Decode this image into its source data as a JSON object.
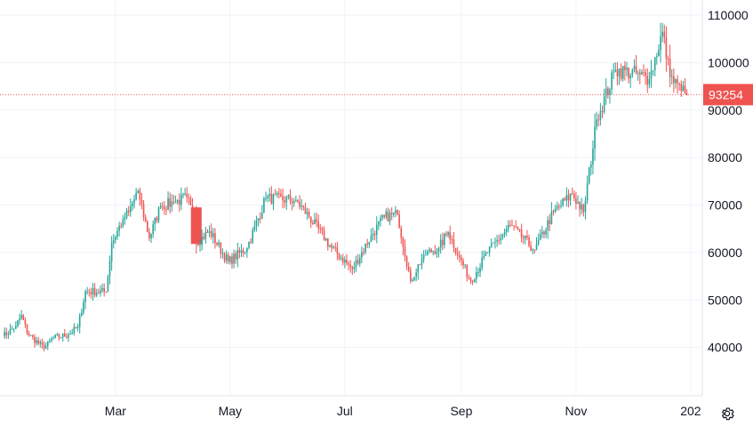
{
  "chart_data": {
    "type": "candlestick",
    "y_axis": {
      "ticks": [
        40000,
        50000,
        60000,
        70000,
        80000,
        90000,
        100000,
        110000
      ],
      "tick_labels": [
        "40000",
        "50000",
        "60000",
        "70000",
        "80000",
        "90000",
        "100000",
        "110000"
      ],
      "range": [
        31500,
        111500
      ],
      "side": "right"
    },
    "x_axis": {
      "range": [
        "2024-01-01",
        "2025-01-02"
      ],
      "ticks": [
        {
          "date": "2024-03-01",
          "label": "Mar"
        },
        {
          "date": "2024-05-01",
          "label": "May"
        },
        {
          "date": "2024-07-01",
          "label": "Jul"
        },
        {
          "date": "2024-09-01",
          "label": "Sep"
        },
        {
          "date": "2024-11-01",
          "label": "Nov"
        },
        {
          "date": "2025-01-01",
          "label": "202"
        }
      ]
    },
    "grid": true,
    "last_price": 93254,
    "last_price_label": "93254",
    "up_color": "#26a69a",
    "down_color": "#ef5350",
    "grid_color": "#f0f3fa",
    "anchors": [
      [
        "2024-01-01",
        42300
      ],
      [
        "2024-01-08",
        44500
      ],
      [
        "2024-01-11",
        46800
      ],
      [
        "2024-01-14",
        43000
      ],
      [
        "2024-01-23",
        39800
      ],
      [
        "2024-01-28",
        42000
      ],
      [
        "2024-02-05",
        42700
      ],
      [
        "2024-02-10",
        44300
      ],
      [
        "2024-02-14",
        51800
      ],
      [
        "2024-02-25",
        51700
      ],
      [
        "2024-02-28",
        62000
      ],
      [
        "2024-03-05",
        67000
      ],
      [
        "2024-03-08",
        68500
      ],
      [
        "2024-03-13",
        73000
      ],
      [
        "2024-03-19",
        63000
      ],
      [
        "2024-03-25",
        69800
      ],
      [
        "2024-04-01",
        70500
      ],
      [
        "2024-04-08",
        71600
      ],
      [
        "2024-04-12",
        67000
      ],
      [
        "2024-04-13",
        62000
      ],
      [
        "2024-04-20",
        64500
      ],
      [
        "2024-04-30",
        58000
      ],
      [
        "2024-05-10",
        61000
      ],
      [
        "2024-05-20",
        71400
      ],
      [
        "2024-06-05",
        71000
      ],
      [
        "2024-06-12",
        67500
      ],
      [
        "2024-06-24",
        61000
      ],
      [
        "2024-07-05",
        56500
      ],
      [
        "2024-07-15",
        63500
      ],
      [
        "2024-07-22",
        67500
      ],
      [
        "2024-07-29",
        68000
      ],
      [
        "2024-08-05",
        54000
      ],
      [
        "2024-08-12",
        59500
      ],
      [
        "2024-08-20",
        61000
      ],
      [
        "2024-08-25",
        64300
      ],
      [
        "2024-08-31",
        59000
      ],
      [
        "2024-09-06",
        54000
      ],
      [
        "2024-09-15",
        60000
      ],
      [
        "2024-09-27",
        65800
      ],
      [
        "2024-10-10",
        60500
      ],
      [
        "2024-10-20",
        68500
      ],
      [
        "2024-10-30",
        72300
      ],
      [
        "2024-11-05",
        68500
      ],
      [
        "2024-11-12",
        88000
      ],
      [
        "2024-11-22",
        98500
      ],
      [
        "2024-12-05",
        97500
      ],
      [
        "2024-12-10",
        96500
      ],
      [
        "2024-12-17",
        106500
      ],
      [
        "2024-12-21",
        97000
      ],
      [
        "2024-12-27",
        94000
      ],
      [
        "2024-12-30",
        93254
      ]
    ],
    "big_candle": {
      "date": "2024-04-13",
      "open": 69500,
      "close": 61800
    }
  }
}
